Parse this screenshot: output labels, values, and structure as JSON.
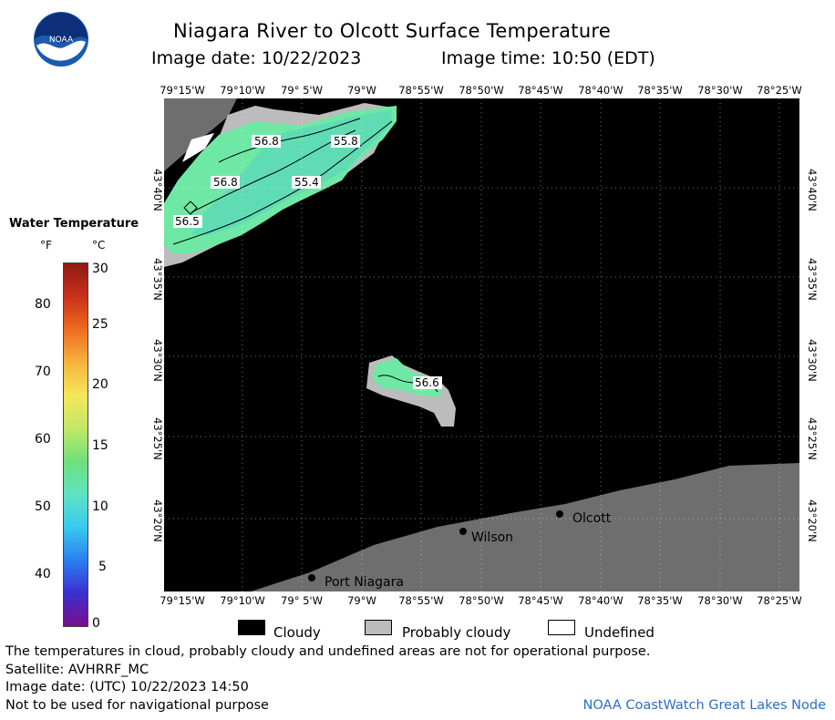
{
  "header": {
    "title": "Niagara River to Olcott Surface Temperature",
    "image_date": "Image date: 10/22/2023",
    "image_time": "Image time: 10:50 (EDT)"
  },
  "logo": {
    "text": "NOAA"
  },
  "map": {
    "lon_labels": [
      "79°15'W",
      "79°10'W",
      "79° 5'W",
      "79°W",
      "78°55'W",
      "78°50'W",
      "78°45'W",
      "78°40'W",
      "78°35'W",
      "78°30'W",
      "78°25'W"
    ],
    "lat_labels": [
      "43°40'N",
      "43°35'N",
      "43°30'N",
      "43°25'N",
      "43°20'N"
    ],
    "contour_labels": [
      "56.8",
      "55.8",
      "56.8",
      "55.4",
      "56.5",
      "56.6"
    ],
    "places": [
      "Olcott",
      "Wilson",
      "Port Niagara"
    ],
    "colors": {
      "cloudy": "#000000",
      "probably_cloudy": "#bcbcbc",
      "land": "#6e6e6e",
      "undefined": "#ffffff"
    }
  },
  "legend": {
    "title": "Water Temperature",
    "unit_f": "°F",
    "unit_c": "°C",
    "f_ticks": [
      "80",
      "70",
      "60",
      "50",
      "40"
    ],
    "c_ticks": [
      "30",
      "25",
      "20",
      "15",
      "10",
      "5",
      "0"
    ],
    "colormap": [
      "#7a0d8f",
      "#3b2fd0",
      "#2a7ff0",
      "#38c9ef",
      "#5fe3c3",
      "#6fe07a",
      "#c2e866",
      "#f6e65a",
      "#f6b33e",
      "#ee6b1f",
      "#c9301a",
      "#8e1a14"
    ]
  },
  "key": {
    "cloudy": "Cloudy",
    "probably_cloudy": "Probably cloudy",
    "undefined": "Undefined"
  },
  "footer": {
    "disclaimer": "The temperatures in cloud, probably cloudy and undefined areas are not for operational purpose.",
    "satellite": "Satellite: AVHRRF_MC",
    "utc_date": "Image date: (UTC) 10/22/2023  14:50",
    "navigation": "Not to be used for navigational purpose",
    "credit": "NOAA CoastWatch Great Lakes Node"
  }
}
